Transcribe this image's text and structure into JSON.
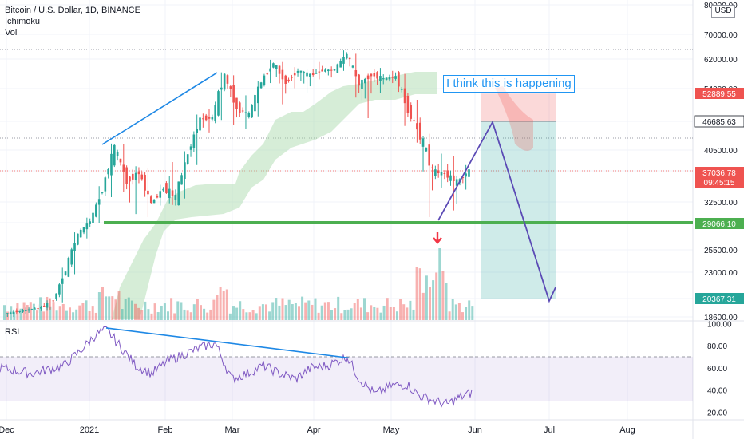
{
  "header": {
    "symbol_line": "Bitcoin / U.S. Dollar, 1D, BINANCE",
    "indicator_1": "Ichimoku",
    "indicator_2": "Vol",
    "currency_badge": "USD"
  },
  "rsi_panel": {
    "label": "RSI"
  },
  "annotation": {
    "text": "I think this is happening"
  },
  "chart_data": {
    "type": "candlestick",
    "x_axis_labels": [
      "Dec",
      "2021",
      "Feb",
      "Mar",
      "Apr",
      "May",
      "Jun",
      "Jul",
      "Aug"
    ],
    "price_axis_ticks": [
      "80000.00",
      "70000.00",
      "62000.00",
      "54000.00",
      "46685.63",
      "40500.00",
      "37036.78",
      "32500.00",
      "29066.10",
      "25500.00",
      "23000.00",
      "20367.31",
      "18600.00"
    ],
    "rsi_axis_ticks": [
      "100.00",
      "80.00",
      "60.00",
      "40.00",
      "20.00"
    ],
    "price_labels": [
      {
        "value": "52889.55",
        "color": "#ef5350"
      },
      {
        "value": "46685.63",
        "color": "#ffffff"
      },
      {
        "value": "37036.78",
        "sub": "09:45:15",
        "color": "#ef5350"
      },
      {
        "value": "29066.10",
        "color": "#4caf50"
      },
      {
        "value": "20367.31",
        "color": "#26a69a"
      }
    ],
    "last_price": 37036.78,
    "support_level": 29066.1,
    "short_position": {
      "entry": 46685.63,
      "stop": 52889.55,
      "target": 20367.31
    },
    "rsi_levels": [
      70,
      30
    ],
    "colors": {
      "up": "#26a69a",
      "down": "#ef5350",
      "cloud": "#a5d6a7",
      "rsi": "#7e57c2",
      "trend": "#1e88e5",
      "projection": "#5b4ab5",
      "support": "#4caf50"
    },
    "candles_ohlc_sampled": [
      [
        18900,
        19300,
        18600,
        19100
      ],
      [
        19100,
        19500,
        18900,
        19300
      ],
      [
        19300,
        19800,
        19000,
        19500
      ],
      [
        19500,
        20400,
        19300,
        20200
      ],
      [
        20200,
        23500,
        20000,
        23200
      ],
      [
        23200,
        27800,
        22800,
        27500
      ],
      [
        27500,
        29900,
        27000,
        29300
      ],
      [
        29300,
        34800,
        29000,
        34300
      ],
      [
        34300,
        41900,
        33200,
        40900
      ],
      [
        40900,
        41800,
        34000,
        35500
      ],
      [
        35500,
        37800,
        30500,
        36800
      ],
      [
        36800,
        37500,
        30000,
        32300
      ],
      [
        32300,
        35000,
        31900,
        34500
      ],
      [
        34500,
        38500,
        32000,
        33200
      ],
      [
        33200,
        40300,
        33000,
        39800
      ],
      [
        39800,
        48200,
        38000,
        47200
      ],
      [
        47200,
        49500,
        44300,
        47500
      ],
      [
        47500,
        58400,
        47000,
        57400
      ],
      [
        57400,
        57600,
        46000,
        49600
      ],
      [
        49600,
        52500,
        45000,
        48200
      ],
      [
        48200,
        56000,
        47800,
        55800
      ],
      [
        55800,
        61800,
        55500,
        60900
      ],
      [
        60900,
        61200,
        50500,
        55600
      ],
      [
        55600,
        59800,
        54100,
        58900
      ],
      [
        58900,
        59300,
        53000,
        57600
      ],
      [
        57600,
        61200,
        56500,
        58900
      ],
      [
        58900,
        60000,
        57000,
        59100
      ],
      [
        59100,
        64800,
        58800,
        63500
      ],
      [
        63500,
        63700,
        52000,
        55100
      ],
      [
        55100,
        58000,
        47400,
        57800
      ],
      [
        57800,
        59600,
        53000,
        56600
      ],
      [
        56600,
        58800,
        55500,
        57200
      ],
      [
        57200,
        58000,
        45700,
        49200
      ],
      [
        49200,
        51500,
        42100,
        43500
      ],
      [
        43500,
        44000,
        30000,
        37000
      ],
      [
        37000,
        39900,
        34600,
        36600
      ],
      [
        36600,
        39500,
        31100,
        35400
      ],
      [
        35400,
        38000,
        34300,
        37036.78
      ]
    ],
    "rsi_trendline_points": [
      [
        1,
        96
      ],
      [
        3,
        83
      ],
      [
        5,
        70
      ]
    ]
  }
}
